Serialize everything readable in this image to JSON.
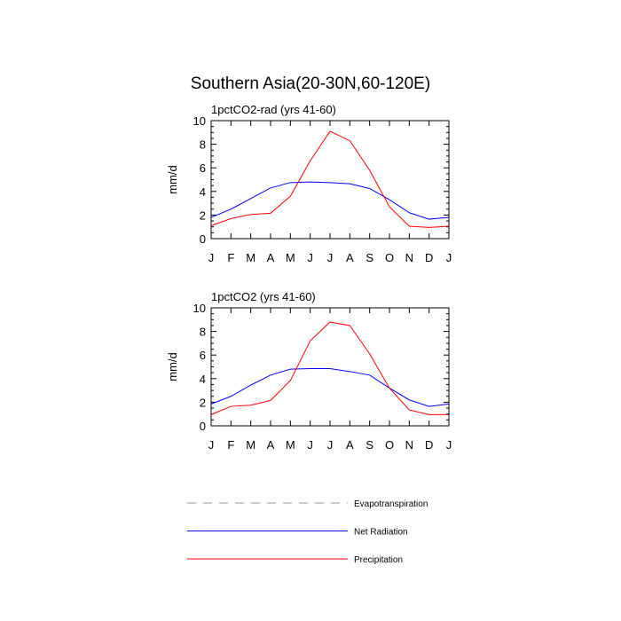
{
  "figure": {
    "title": "Southern Asia(20-30N,60-120E)"
  },
  "chart_data": [
    {
      "type": "line",
      "title": "1pctCO2-rad (yrs 41-60)",
      "xlabel": "",
      "ylabel": "mm/d",
      "categories": [
        "J",
        "F",
        "M",
        "A",
        "M",
        "J",
        "J",
        "A",
        "S",
        "O",
        "N",
        "D",
        "J"
      ],
      "ylim": [
        0,
        10
      ],
      "yticks": [
        0,
        2,
        4,
        6,
        8,
        10
      ],
      "series": [
        {
          "name": "Net Radiation",
          "color": "#0000ff",
          "values": [
            1.8,
            2.5,
            3.4,
            4.3,
            4.75,
            4.8,
            4.75,
            4.65,
            4.25,
            3.3,
            2.2,
            1.65,
            1.8
          ]
        },
        {
          "name": "Precipitation",
          "color": "#ff0000",
          "values": [
            1.1,
            1.7,
            2.05,
            2.15,
            3.6,
            6.6,
            9.1,
            8.3,
            5.8,
            2.7,
            1.05,
            0.95,
            1.05
          ]
        }
      ]
    },
    {
      "type": "line",
      "title": "1pctCO2 (yrs 41-60)",
      "xlabel": "",
      "ylabel": "mm/d",
      "categories": [
        "J",
        "F",
        "M",
        "A",
        "M",
        "J",
        "J",
        "A",
        "S",
        "O",
        "N",
        "D",
        "J"
      ],
      "ylim": [
        0,
        10
      ],
      "yticks": [
        0,
        2,
        4,
        6,
        8,
        10
      ],
      "series": [
        {
          "name": "Net Radiation",
          "color": "#0000ff",
          "values": [
            1.85,
            2.5,
            3.45,
            4.3,
            4.8,
            4.85,
            4.85,
            4.6,
            4.3,
            3.2,
            2.2,
            1.65,
            1.85
          ]
        },
        {
          "name": "Precipitation",
          "color": "#ff0000",
          "values": [
            0.95,
            1.65,
            1.75,
            2.15,
            3.85,
            7.2,
            8.8,
            8.5,
            6.1,
            3.2,
            1.35,
            0.95,
            0.95
          ]
        }
      ]
    }
  ],
  "legend": [
    {
      "label": "Evapotranspiration",
      "color": "#999999",
      "style": "dashed"
    },
    {
      "label": "Net Radiation",
      "color": "#0000ff",
      "style": "solid"
    },
    {
      "label": "Precipitation",
      "color": "#ff0000",
      "style": "solid"
    }
  ]
}
